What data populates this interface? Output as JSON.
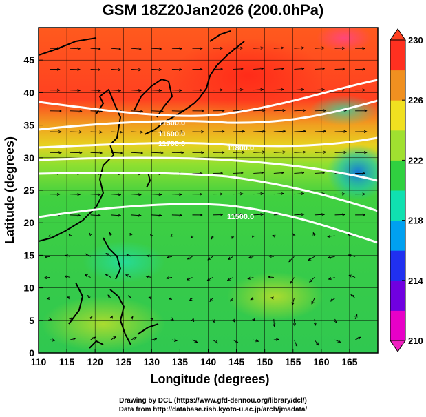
{
  "title": "GSM 18Z20Jan2026 (200.0hPa)",
  "credits": {
    "line1": "Drawing by DCL (https://www.gfd-dennou.org/library/dcl/)",
    "line2": "Data from http://database.rish.kyoto-u.ac.jp/arch/jmadata/"
  },
  "chart_data": {
    "type": "heatmap",
    "title": "GSM 18Z20Jan2026 (200.0hPa)",
    "xlabel": "Longitude (degrees)",
    "ylabel": "Latitude  (degrees)",
    "xlim": [
      110,
      170
    ],
    "ylim": [
      0,
      50
    ],
    "x_ticks": [
      110,
      115,
      120,
      125,
      130,
      135,
      140,
      145,
      150,
      155,
      160,
      165
    ],
    "y_ticks": [
      0,
      5,
      10,
      15,
      20,
      25,
      30,
      35,
      40,
      45
    ],
    "colorbar": {
      "min": 210,
      "max": 230,
      "ticks": [
        210,
        214,
        218,
        222,
        226,
        230
      ],
      "colors": [
        "#e800c8",
        "#7000e0",
        "#2030f0",
        "#00a0f0",
        "#10e0b0",
        "#30d040",
        "#a0e030",
        "#f0e020",
        "#f09020",
        "#ff3020"
      ]
    },
    "contour_labels": [
      "11500.0",
      "11600.0",
      "11700.0",
      "11800.0"
    ]
  },
  "colors": {
    "contour": "#ffffff",
    "coast": "#000000",
    "grid": "#000000",
    "arrow": "#000000"
  }
}
